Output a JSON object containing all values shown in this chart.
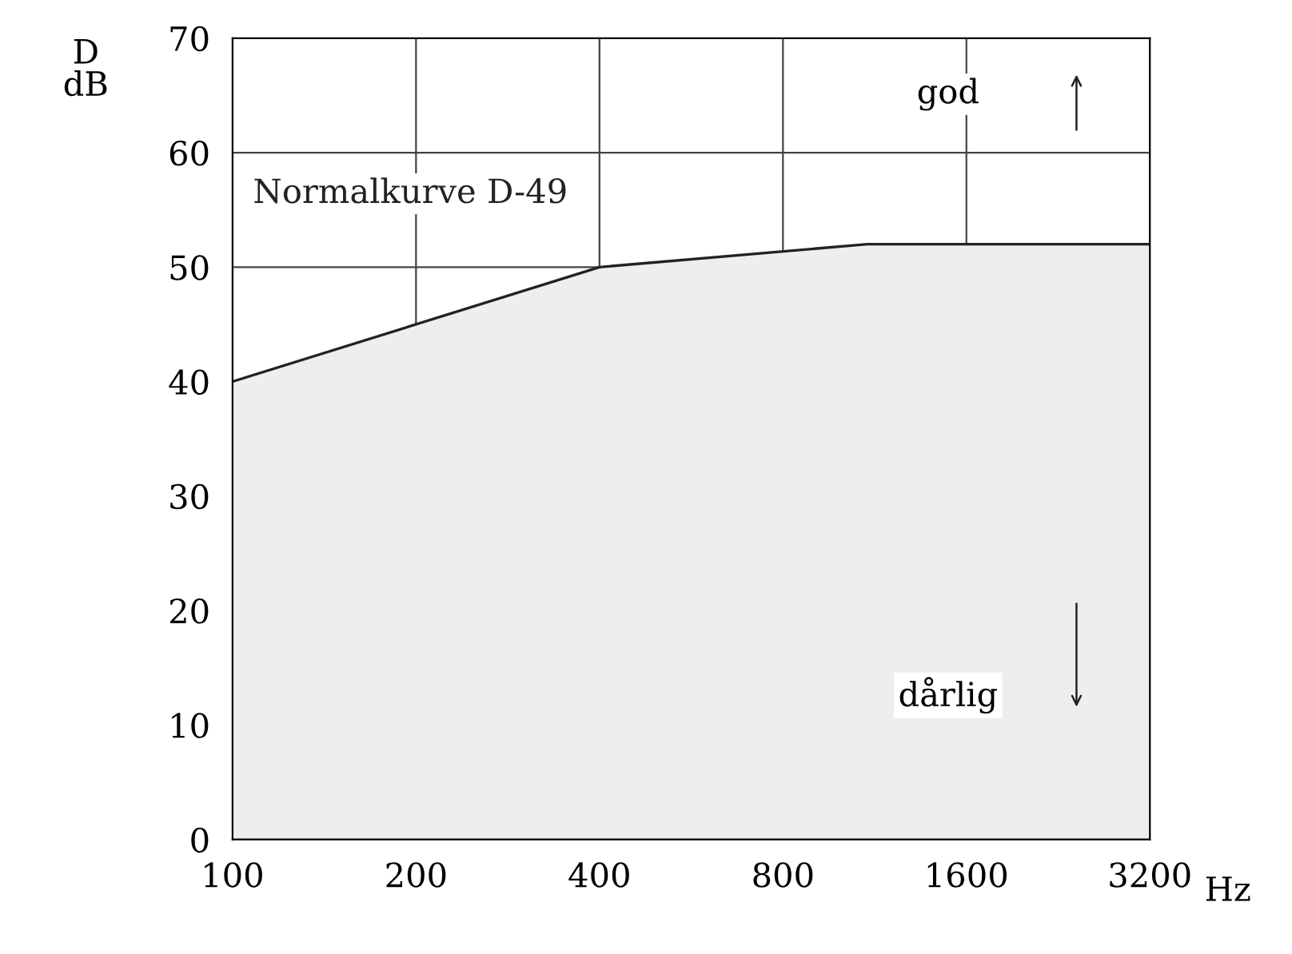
{
  "chart_data": {
    "type": "area",
    "ylabel": "D\ndB",
    "xlabel": "Hz",
    "x": [
      100,
      400,
      1100,
      3200
    ],
    "series": [
      {
        "name": "Normalkurve D-49",
        "color": "#222222",
        "values": [
          40,
          50,
          52,
          52
        ]
      }
    ],
    "log": "x",
    "xlim": [
      100,
      3200
    ],
    "xticks": [
      100,
      200,
      400,
      800,
      1600,
      3200
    ],
    "ylim": [
      0,
      70
    ],
    "yticks": [
      0,
      10,
      20,
      30,
      40,
      50,
      60,
      70
    ],
    "grid": true,
    "legend": false,
    "annotations": [
      "god",
      "dårlig"
    ]
  }
}
